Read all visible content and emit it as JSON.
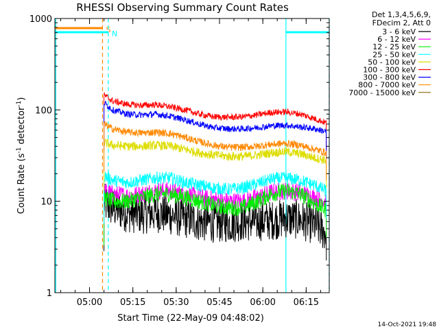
{
  "chart_data": {
    "type": "line",
    "title": "RHESSI Observing Summary Count Rates",
    "xlabel": "Start Time (22-May-09 04:48:02)",
    "ylabel_prefix": "Count Rate (s",
    "ylabel_exp1": "-1",
    "ylabel_mid": " detector",
    "ylabel_exp2": "-1",
    "ylabel_suffix": ")",
    "y_scale": "log",
    "ylim": [
      1,
      1000
    ],
    "xlim_minutes": [
      0,
      95
    ],
    "x_ticks": [
      {
        "label": "05:00",
        "minute": 12
      },
      {
        "label": "05:15",
        "minute": 27
      },
      {
        "label": "05:30",
        "minute": 42
      },
      {
        "label": "05:45",
        "minute": 57
      },
      {
        "label": "06:00",
        "minute": 72
      },
      {
        "label": "06:15",
        "minute": 87
      }
    ],
    "y_ticks": [
      {
        "label": "1",
        "value": 1
      },
      {
        "label": "10",
        "value": 10
      },
      {
        "label": "100",
        "value": 100
      },
      {
        "label": "1000",
        "value": 1000
      }
    ],
    "legend_header": [
      "Det 1,3,4,5,6,9,",
      "FDecim 2, Att 0"
    ],
    "legend_position": "right",
    "timestamp": "14-Oct-2021 19:48",
    "data_start_minute": 17,
    "data_end_minute": 94,
    "series": [
      {
        "name": "3 - 6 keV",
        "color": "#000000",
        "x": [
          17,
          20,
          25,
          30,
          35,
          40,
          45,
          50,
          55,
          60,
          65,
          70,
          75,
          80,
          85,
          90,
          94
        ],
        "values": [
          9.5,
          8.5,
          7.5,
          7.2,
          7.5,
          7.0,
          6.5,
          6.0,
          5.8,
          5.8,
          6.0,
          6.0,
          6.2,
          6.5,
          6.3,
          5.5,
          4.5
        ]
      },
      {
        "name": "6 - 12 keV",
        "color": "#ff00ff",
        "x": [
          17,
          20,
          25,
          30,
          35,
          40,
          45,
          50,
          55,
          60,
          65,
          70,
          75,
          80,
          85,
          90,
          94
        ],
        "values": [
          13,
          12,
          11.5,
          12,
          13,
          13,
          12,
          11,
          10.5,
          10,
          10,
          11,
          12.5,
          13,
          12.5,
          11,
          10
        ]
      },
      {
        "name": "12 - 25 keV",
        "color": "#00ee00",
        "x": [
          17,
          20,
          25,
          30,
          35,
          40,
          45,
          50,
          55,
          60,
          65,
          70,
          75,
          80,
          85,
          90,
          94
        ],
        "values": [
          11,
          10,
          10,
          11,
          12,
          12,
          11,
          10,
          9,
          8.5,
          8.5,
          10,
          12,
          13,
          12,
          9.5,
          8
        ]
      },
      {
        "name": "25 - 50 keV",
        "color": "#00ffff",
        "x": [
          17,
          20,
          25,
          30,
          35,
          40,
          45,
          50,
          55,
          60,
          65,
          70,
          75,
          80,
          85,
          90,
          94
        ],
        "values": [
          19,
          17,
          16,
          17,
          18,
          18,
          16,
          15,
          14,
          13.5,
          14,
          15.5,
          17.5,
          18,
          17,
          15,
          13
        ]
      },
      {
        "name": "50 - 100 keV",
        "color": "#dddd00",
        "x": [
          17,
          20,
          25,
          30,
          35,
          40,
          45,
          50,
          55,
          60,
          65,
          70,
          75,
          80,
          85,
          90,
          94
        ],
        "values": [
          44,
          41,
          40,
          40,
          41,
          40,
          37,
          34,
          32,
          31,
          31,
          32,
          34,
          35,
          33,
          30,
          28
        ]
      },
      {
        "name": "100 - 300 keV",
        "color": "#ff0000",
        "x": [
          17,
          20,
          25,
          30,
          35,
          40,
          45,
          50,
          55,
          60,
          65,
          70,
          75,
          80,
          85,
          90,
          94
        ],
        "values": [
          145,
          125,
          115,
          112,
          114,
          108,
          100,
          90,
          84,
          83,
          84,
          88,
          94,
          95,
          90,
          80,
          72
        ]
      },
      {
        "name": "300 - 800 keV",
        "color": "#0000ff",
        "x": [
          17,
          20,
          25,
          30,
          35,
          40,
          45,
          50,
          55,
          60,
          65,
          70,
          75,
          80,
          85,
          90,
          94
        ],
        "values": [
          120,
          100,
          90,
          88,
          90,
          85,
          78,
          70,
          64,
          62,
          62,
          64,
          67,
          68,
          65,
          62,
          58
        ]
      },
      {
        "name": "800 - 7000 keV",
        "color": "#ff8800",
        "x": [
          17,
          20,
          25,
          30,
          35,
          40,
          45,
          50,
          55,
          60,
          65,
          70,
          75,
          80,
          85,
          90,
          94
        ],
        "values": [
          70,
          62,
          57,
          56,
          57,
          55,
          50,
          45,
          41,
          39,
          39,
          40,
          42,
          43,
          41,
          37,
          34
        ]
      },
      {
        "name": "7000 - 15000 keV",
        "color": "#886600",
        "x": [],
        "values": []
      }
    ],
    "flags": [
      {
        "label": "S",
        "color": "#ff8800",
        "start_minute": 0,
        "end_minute": 16.5,
        "dashed_line_minute": 16.5
      },
      {
        "label": "N",
        "color": "#00ffff",
        "start_minute": 0,
        "end_minute": 18.5,
        "dashed_line_minute": 18.5
      },
      {
        "label": "",
        "color": "#00ffff",
        "start_minute": 80,
        "end_minute": 95,
        "dashed_line_minute": 95
      }
    ],
    "vertical_lines": [
      {
        "minute": 0.3,
        "color": "#00ffff",
        "style": "solid"
      },
      {
        "minute": 80,
        "color": "#00ffff",
        "style": "solid"
      }
    ]
  }
}
